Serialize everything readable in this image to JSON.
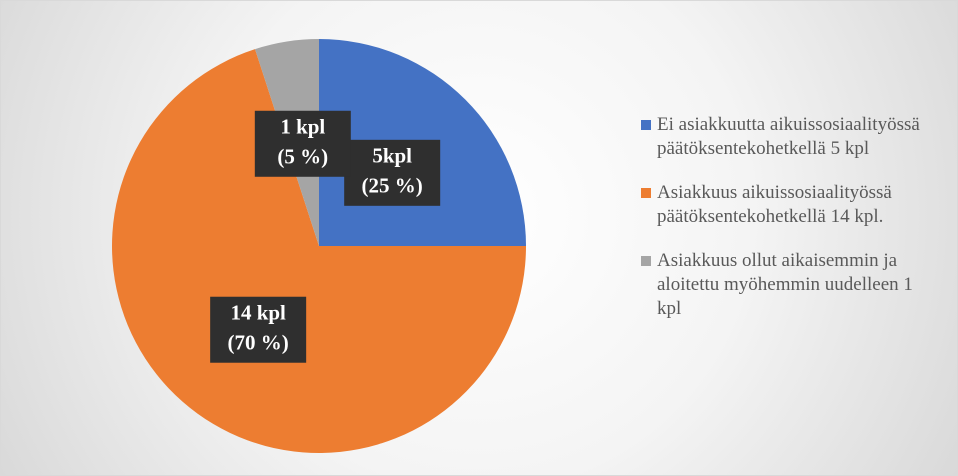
{
  "chart_data": {
    "type": "pie",
    "categories": [
      "Ei asiakkuutta aikuissosiaalityössä päätöksentekohetkellä 5 kpl",
      "Asiakkuus aikuissosiaalityössä päätöksentekohetkellä 14 kpl.",
      "Asiakkuus ollut aikaisemmin ja aloitettu myöhemmin uudelleen 1 kpl"
    ],
    "values": [
      5,
      14,
      1
    ],
    "value_labels": [
      [
        "5kpl",
        "(25 %)"
      ],
      [
        "14 kpl",
        "(70 %)"
      ],
      [
        "1 kpl",
        "(5 %)"
      ]
    ],
    "colors": [
      "#4472c4",
      "#ed7d31",
      "#a5a5a5"
    ],
    "legend": "right"
  }
}
